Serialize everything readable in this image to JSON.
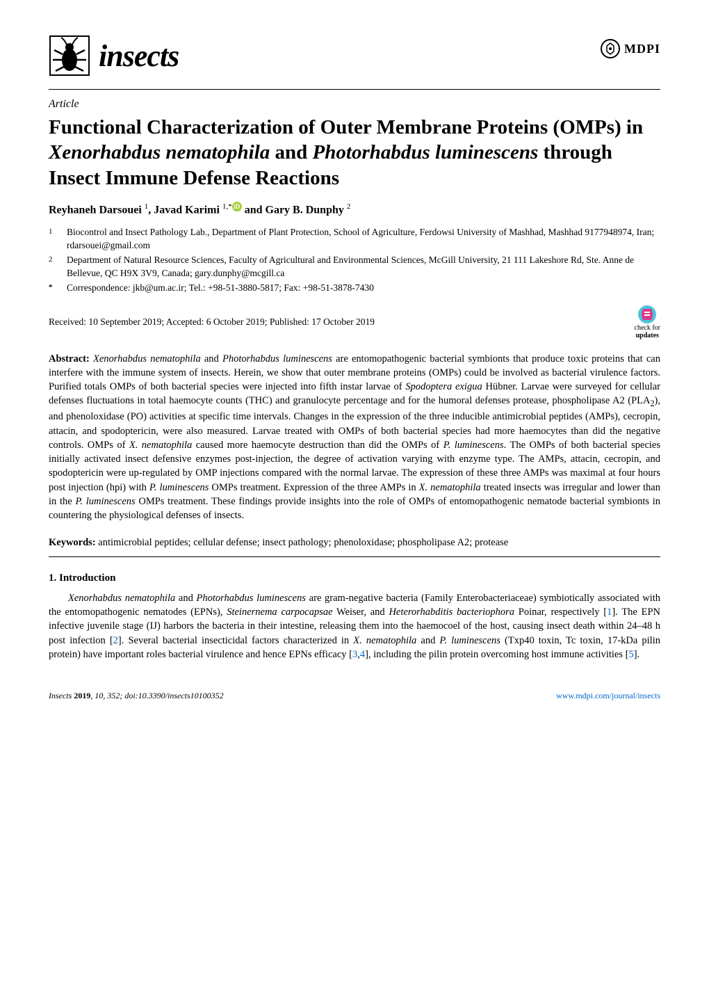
{
  "journal": {
    "name": "insects",
    "logo_color": "#000000",
    "bug_color": "#000000"
  },
  "publisher": {
    "name": "MDPI",
    "accent_color": "#a6ce39"
  },
  "article_type": "Article",
  "title_parts": {
    "p1": "Functional Characterization of Outer Membrane Proteins (OMPs) in ",
    "sp1": "Xenorhabdus nematophila",
    "p2": " and ",
    "sp2": "Photorhabdus luminescens",
    "p3": " through Insect Immune Defense Reactions"
  },
  "authors": {
    "a1_name": "Reyhaneh Darsouei",
    "a1_sup": "1",
    "a2_name": "Javad Karimi",
    "a2_sup": "1,",
    "a2_extra": "*",
    "a3_name": "Gary B. Dunphy",
    "a3_sup": "2",
    "sep": ", ",
    "and": " and "
  },
  "affiliations": [
    {
      "num": "1",
      "text": "Biocontrol and Insect Pathology Lab., Department of Plant Protection, School of Agriculture, Ferdowsi University of Mashhad, Mashhad 9177948974, Iran; rdarsouei@gmail.com"
    },
    {
      "num": "2",
      "text": "Department of Natural Resource Sciences, Faculty of Agricultural and Environmental Sciences, McGill University, 21 111 Lakeshore Rd, Ste. Anne de Bellevue, QC H9X 3V9, Canada; gary.dunphy@mcgill.ca"
    },
    {
      "num": "*",
      "text": "Correspondence: jkb@um.ac.ir; Tel.: +98-51-3880-5817; Fax: +98-51-3878-7430"
    }
  ],
  "dates": "Received: 10 September 2019; Accepted: 6 October 2019; Published: 17 October 2019",
  "check_updates": {
    "line1": "check for",
    "line2": "updates",
    "fg_color": "#d93b8a",
    "bg_color": "#4fc3d9"
  },
  "abstract": {
    "label": "Abstract:",
    "segments": [
      {
        "t": " ",
        "i": false
      },
      {
        "t": "Xenorhabdus nematophila",
        "i": true
      },
      {
        "t": " and ",
        "i": false
      },
      {
        "t": "Photorhabdus luminescens",
        "i": true
      },
      {
        "t": " are entomopathogenic bacterial symbionts that produce toxic proteins that can interfere with the immune system of insects. Herein, we show that outer membrane proteins (OMPs) could be involved as bacterial virulence factors. Purified totals OMPs of both bacterial species were injected into fifth instar larvae of ",
        "i": false
      },
      {
        "t": "Spodoptera exigua",
        "i": true
      },
      {
        "t": " Hübner. Larvae were surveyed for cellular defenses fluctuations in total haemocyte counts (THC) and granulocyte percentage and for the humoral defenses protease, phospholipase A2 (PLA",
        "i": false
      },
      {
        "t": "2",
        "sub": true
      },
      {
        "t": "), and phenoloxidase (PO) activities at specific time intervals. Changes in the expression of the three inducible antimicrobial peptides (AMPs), cecropin, attacin, and spodoptericin, were also measured. Larvae treated with OMPs of both bacterial species had more haemocytes than did the negative controls. OMPs of ",
        "i": false
      },
      {
        "t": "X. nematophila",
        "i": true
      },
      {
        "t": " caused more haemocyte destruction than did the OMPs of ",
        "i": false
      },
      {
        "t": "P. luminescens",
        "i": true
      },
      {
        "t": ". The OMPs of both bacterial species initially activated insect defensive enzymes post-injection, the degree of activation varying with enzyme type. The AMPs, attacin, cecropin, and spodoptericin were up-regulated by OMP injections compared with the normal larvae. The expression of these three AMPs was maximal at four hours post injection (hpi) with ",
        "i": false
      },
      {
        "t": "P. luminescens",
        "i": true
      },
      {
        "t": " OMPs treatment. Expression of the three AMPs in ",
        "i": false
      },
      {
        "t": "X. nematophila",
        "i": true
      },
      {
        "t": " treated insects was irregular and lower than in the ",
        "i": false
      },
      {
        "t": "P. luminescens",
        "i": true
      },
      {
        "t": " OMPs treatment. These findings provide insights into the role of OMPs of entomopathogenic nematode bacterial symbionts in countering the physiological defenses of insects.",
        "i": false
      }
    ]
  },
  "keywords": {
    "label": "Keywords:",
    "text": " antimicrobial peptides; cellular defense; insect pathology; phenoloxidase; phospholipase A2; protease"
  },
  "section1": {
    "heading": "1. Introduction",
    "segments": [
      {
        "t": "Xenorhabdus nematophila",
        "i": true
      },
      {
        "t": " and ",
        "i": false
      },
      {
        "t": "Photorhabdus luminescens",
        "i": true
      },
      {
        "t": " are gram-negative bacteria (Family Enterobacteriaceae) symbiotically associated with the entomopathogenic nematodes (EPNs), ",
        "i": false
      },
      {
        "t": "Steinernema carpocapsae",
        "i": true
      },
      {
        "t": " Weiser, and ",
        "i": false
      },
      {
        "t": "Heterorhabditis bacteriophora",
        "i": true
      },
      {
        "t": " Poinar, respectively [",
        "i": false
      },
      {
        "t": "1",
        "ref": true
      },
      {
        "t": "]. The EPN infective juvenile stage (IJ) harbors the bacteria in their intestine, releasing them into the haemocoel of the host, causing insect death within 24–48 h post infection [",
        "i": false
      },
      {
        "t": "2",
        "ref": true
      },
      {
        "t": "]. Several bacterial insecticidal factors characterized in ",
        "i": false
      },
      {
        "t": "X. nematophila",
        "i": true
      },
      {
        "t": " and ",
        "i": false
      },
      {
        "t": "P. luminescens",
        "i": true
      },
      {
        "t": " (Txp40 toxin, Tc toxin, 17-kDa pilin protein) have important roles bacterial virulence and hence EPNs efficacy [",
        "i": false
      },
      {
        "t": "3",
        "ref": true
      },
      {
        "t": ",",
        "i": false
      },
      {
        "t": "4",
        "ref": true
      },
      {
        "t": "], including the pilin protein overcoming host immune activities [",
        "i": false
      },
      {
        "t": "5",
        "ref": true
      },
      {
        "t": "].",
        "i": false
      }
    ]
  },
  "footer": {
    "left_plain": "Insects ",
    "left_bold": "2019",
    "left_rest": ", 10, 352; doi:10.3390/insects10100352",
    "right": "www.mdpi.com/journal/insects"
  },
  "colors": {
    "text": "#000000",
    "link": "#0066cc",
    "orcid": "#a6ce39",
    "background": "#ffffff"
  }
}
